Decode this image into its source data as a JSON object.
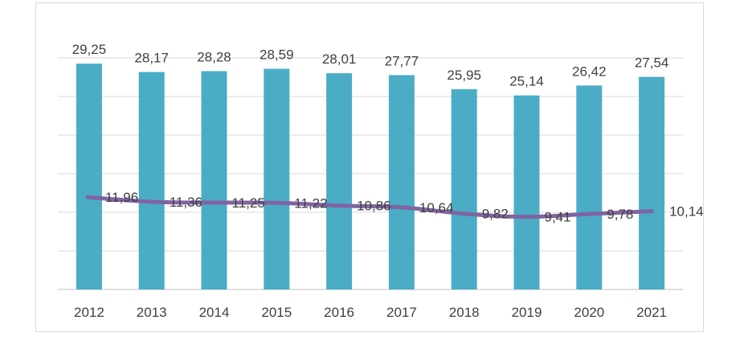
{
  "chart_data": {
    "type": "bar",
    "categories": [
      "2012",
      "2013",
      "2014",
      "2015",
      "2016",
      "2017",
      "2018",
      "2019",
      "2020",
      "2021"
    ],
    "series": [
      {
        "type": "bar",
        "values": [
          29.25,
          28.17,
          28.28,
          28.59,
          28.01,
          27.77,
          25.95,
          25.14,
          26.42,
          27.54
        ],
        "labels": [
          "29,25",
          "28,17",
          "28,28",
          "28,59",
          "28,01",
          "27,77",
          "25,95",
          "25,14",
          "26,42",
          "27,54"
        ],
        "color": "#4bacc6"
      },
      {
        "type": "line",
        "values": [
          11.96,
          11.36,
          11.25,
          11.22,
          10.86,
          10.64,
          9.82,
          9.41,
          9.78,
          10.14
        ],
        "labels": [
          "11,96",
          "11,36",
          "11,25",
          "11,22",
          "10,86",
          "10,64",
          "9,82",
          "9,41",
          "9,78",
          "10,14"
        ],
        "color": "#8064a2"
      }
    ],
    "ylim": [
      0,
      35
    ],
    "grid": true,
    "gridlines": [
      0,
      5,
      10,
      15,
      20,
      25,
      30
    ],
    "title": "",
    "xlabel": "",
    "ylabel": ""
  }
}
